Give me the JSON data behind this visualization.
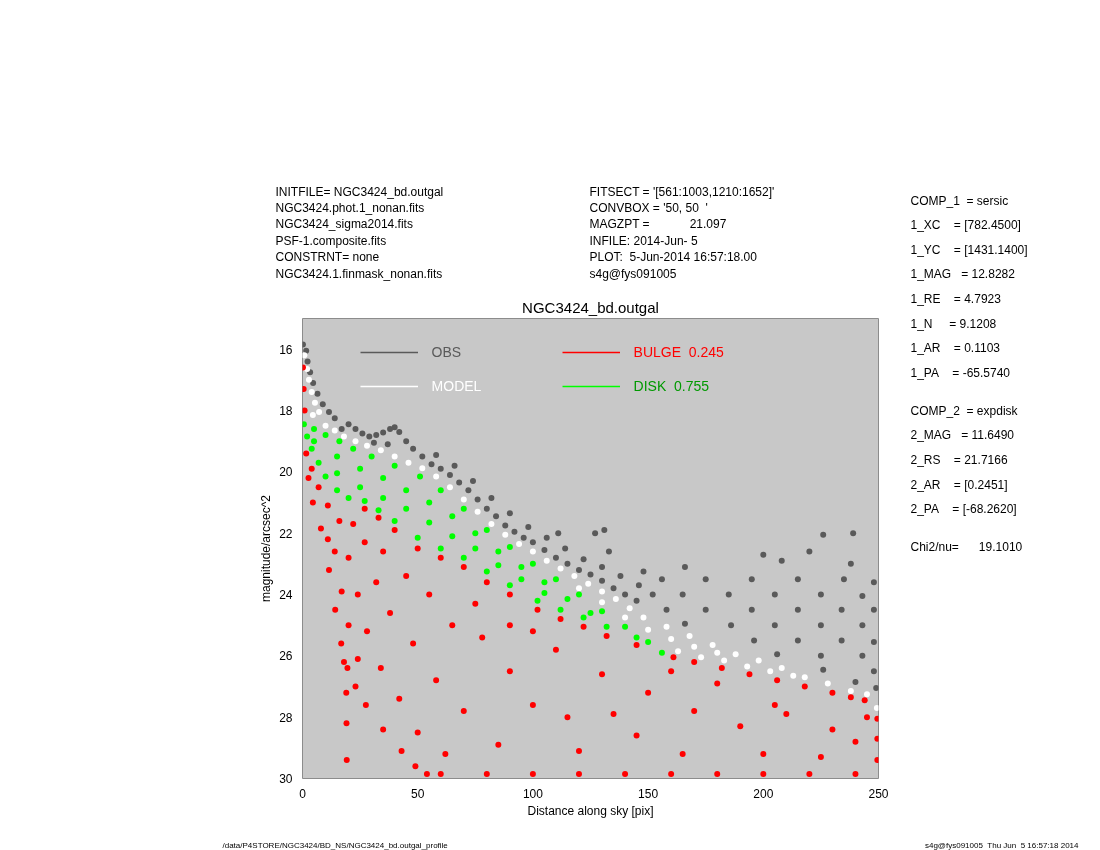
{
  "chart_data": {
    "type": "scatter",
    "title": "NGC3424_bd.outgal",
    "xlabel": "Distance along sky [pix]",
    "ylabel": "magnitude/arcsec^2",
    "xlim": [
      0,
      250
    ],
    "ylim": [
      30,
      15
    ],
    "xticks": [
      0,
      50,
      100,
      150,
      200,
      250
    ],
    "yticks": [
      16,
      18,
      20,
      22,
      24,
      26,
      28,
      30
    ],
    "marker": "circle",
    "legend": "top",
    "annotations": [
      "INITFILE= NGC3424_bd.outgal",
      "NGC3424.phot.1_nonan.fits",
      "NGC3424_sigma2014.fits",
      "PSF-1.composite.fits",
      "CONSTRNT= none",
      "NGC3424.1.finmask_nonan.fits",
      "FITSECT = '[561:1003,1210:1652]'",
      "CONVBOX = '50, 50  '",
      "MAGZPT =            21.097",
      "INFILE: 2014-Jun- 5",
      "PLOT:  5-Jun-2014 16:57:18.00",
      "s4g@fys091005",
      "COMP_1  = sersic",
      "1_XC    = [782.4500]",
      "1_YC    = [1431.1400]",
      "1_MAG   = 12.8282",
      "1_RE    = 4.7923",
      "1_N     = 9.1208",
      "1_AR    = 0.1103",
      "1_PA    = -65.5740",
      "COMP_2  = expdisk",
      "2_MAG   = 11.6490",
      "2_RS    = 21.7166",
      "2_AR    = [0.2451]",
      "2_PA    = [-68.2620]",
      "Chi2/nu=      19.1010",
      "/data/P4STORE/NGC3424/BD_NS/NGC3424_bd.outgal_profile",
      "s4g@fys091005  Thu Jun  5 16:57:18 2014"
    ],
    "series": [
      {
        "name": "OBS",
        "color": "#5a5a5a",
        "x": [
          0.2,
          1.6,
          2.2,
          3.3,
          4.6,
          6.5,
          8.8,
          11.5,
          14,
          17,
          20,
          23,
          26,
          29,
          32,
          35,
          38,
          40,
          42,
          45,
          48,
          31,
          37,
          52,
          56,
          60,
          64,
          68,
          72,
          76,
          80,
          84,
          88,
          92,
          96,
          100,
          105,
          110,
          115,
          120,
          125,
          130,
          135,
          140,
          145,
          58,
          66,
          74,
          82,
          90,
          98,
          106,
          114,
          122,
          130,
          138,
          146,
          111,
          127,
          131,
          133,
          148,
          156,
          175,
          195,
          215,
          235,
          248,
          152,
          165,
          185,
          205,
          225,
          243,
          158,
          175,
          195,
          215,
          234,
          248,
          166,
          186,
          205,
          225,
          243,
          196,
          215,
          234,
          248,
          206,
          225,
          243,
          226,
          248,
          240,
          249,
          166,
          200,
          208,
          220,
          226,
          238,
          239
        ],
        "values": [
          15.85,
          16.05,
          16.4,
          16.75,
          17.1,
          17.45,
          17.8,
          18.05,
          18.25,
          18.6,
          18.45,
          18.6,
          18.75,
          18.85,
          18.8,
          18.72,
          18.6,
          18.55,
          18.7,
          19.0,
          19.25,
          19.05,
          19.1,
          19.5,
          19.75,
          19.9,
          20.1,
          20.35,
          20.6,
          20.9,
          21.2,
          21.45,
          21.75,
          21.95,
          22.15,
          22.3,
          22.55,
          22.8,
          23.0,
          23.2,
          23.35,
          23.55,
          23.8,
          24.0,
          24.2,
          19.45,
          19.8,
          20.3,
          20.85,
          21.35,
          21.8,
          22.15,
          22.5,
          22.85,
          23.1,
          23.4,
          23.7,
          22.0,
          22.0,
          21.9,
          22.6,
          23.25,
          23.5,
          23.5,
          23.5,
          23.5,
          23.5,
          23.6,
          24.0,
          24.0,
          24.0,
          24.0,
          24.0,
          24.05,
          24.5,
          24.5,
          24.5,
          24.5,
          24.5,
          24.5,
          24.95,
          25.0,
          25.0,
          25.0,
          25.0,
          25.5,
          25.5,
          25.5,
          25.55,
          25.95,
          26.0,
          26.0,
          26.45,
          26.5,
          26.85,
          27.05,
          23.1,
          22.7,
          22.9,
          22.6,
          22.05,
          23.0,
          22.0
        ]
      },
      {
        "name": "MODEL",
        "color": "#ffffff",
        "x": [
          0.8,
          2.0,
          2.8,
          4,
          5.4,
          7.2,
          4.5,
          10,
          14,
          18,
          23,
          28,
          34,
          40,
          46,
          52,
          58,
          64,
          70,
          76,
          82,
          88,
          94,
          100,
          106,
          112,
          118,
          124,
          130,
          136,
          142,
          148,
          120,
          130,
          140,
          150,
          158,
          168,
          178,
          188,
          198,
          208,
          218,
          228,
          238,
          245,
          249.3,
          163,
          173,
          183,
          193,
          203,
          213,
          160,
          170,
          180
        ],
        "values": [
          16.2,
          16.65,
          17.0,
          17.4,
          17.75,
          18.05,
          18.15,
          18.5,
          18.65,
          18.85,
          19.0,
          19.15,
          19.3,
          19.5,
          19.7,
          19.88,
          20.15,
          20.5,
          20.9,
          21.3,
          21.7,
          22.05,
          22.35,
          22.6,
          22.9,
          23.15,
          23.4,
          23.65,
          23.9,
          24.15,
          24.45,
          24.75,
          23.8,
          24.25,
          24.75,
          25.15,
          25.05,
          25.35,
          25.65,
          25.95,
          26.15,
          26.4,
          26.7,
          26.9,
          27.15,
          27.25,
          27.7,
          25.85,
          26.05,
          26.15,
          26.35,
          26.5,
          26.65,
          25.45,
          25.7,
          25.9
        ]
      },
      {
        "name": "BULGE  0.245",
        "color": "#ff0000",
        "x": [
          0.2,
          0.5,
          0.9,
          1.6,
          2.6,
          4.5,
          8,
          11.5,
          14.2,
          16.8,
          18,
          19.5,
          23,
          27.5,
          35,
          43,
          49,
          54,
          19,
          19.1,
          19.2,
          27,
          33,
          40,
          50,
          60,
          70,
          80,
          90,
          102,
          112,
          122,
          132,
          145,
          161,
          170,
          182,
          194,
          206,
          218,
          230,
          238,
          244,
          249.5,
          249.5,
          249.5,
          60,
          80,
          100,
          120,
          140,
          160,
          180,
          200,
          220,
          240,
          4,
          7,
          11,
          16,
          22,
          11,
          14,
          20,
          27,
          35,
          17,
          24,
          32,
          45,
          20,
          28,
          38,
          55,
          24,
          34,
          48,
          65,
          42,
          58,
          78,
          50,
          70,
          90,
          110,
          62,
          85,
          100,
          130,
          150,
          170,
          190,
          210,
          230,
          120,
          145,
          165,
          200,
          225,
          240,
          245,
          115,
          135,
          180,
          205,
          160,
          100,
          75,
          90
        ],
        "values": [
          16.6,
          17.3,
          18.0,
          19.4,
          20.2,
          21.0,
          21.85,
          23.2,
          24.5,
          25.6,
          26.2,
          26.4,
          27.0,
          27.6,
          28.4,
          29.1,
          29.6,
          29.85,
          27.2,
          28.2,
          29.4,
          21.2,
          21.5,
          21.9,
          22.5,
          22.8,
          23.1,
          23.6,
          24.0,
          24.5,
          24.8,
          25.05,
          25.35,
          25.65,
          26.05,
          26.2,
          26.4,
          26.6,
          26.8,
          27.0,
          27.2,
          27.35,
          27.45,
          28.05,
          28.7,
          29.4,
          29.85,
          29.85,
          29.85,
          29.85,
          29.85,
          29.85,
          29.85,
          29.85,
          29.85,
          29.85,
          19.9,
          20.5,
          21.1,
          21.6,
          21.7,
          22.2,
          22.6,
          22.8,
          22.3,
          22.6,
          23.9,
          24.0,
          23.6,
          23.4,
          25.0,
          25.2,
          24.6,
          24.0,
          26.1,
          26.4,
          25.6,
          25.0,
          27.4,
          26.8,
          25.4,
          28.5,
          27.8,
          26.5,
          25.8,
          29.2,
          28.9,
          27.6,
          26.6,
          27.2,
          27.8,
          28.3,
          27.9,
          28.4,
          29.1,
          28.6,
          29.2,
          29.2,
          29.3,
          28.8,
          28.0,
          28.0,
          27.9,
          26.9,
          27.6,
          26.5,
          25.2,
          24.3,
          25.0
        ]
      },
      {
        "name": "DISK  0.755",
        "color": "#00ff00",
        "x": [
          0.6,
          5,
          10,
          16,
          22,
          30,
          40,
          51,
          60,
          70,
          80,
          90,
          100,
          110,
          120,
          130,
          140,
          150,
          156,
          2,
          4,
          7,
          10,
          15,
          20,
          27,
          33,
          40,
          50,
          60,
          70,
          80,
          90,
          102,
          112,
          122,
          132,
          145,
          5,
          15,
          15,
          25,
          25,
          35,
          35,
          45,
          45,
          55,
          55,
          65,
          65,
          75,
          75,
          85,
          85,
          95,
          95,
          105,
          105,
          115,
          125
        ],
        "values": [
          18.45,
          18.6,
          18.8,
          19.0,
          19.25,
          19.5,
          19.8,
          20.15,
          20.6,
          21.2,
          21.9,
          22.45,
          23.0,
          23.5,
          24.0,
          24.55,
          25.05,
          25.55,
          25.9,
          18.85,
          19.25,
          19.7,
          20.15,
          20.6,
          20.85,
          20.95,
          21.25,
          21.6,
          22.15,
          22.5,
          22.8,
          23.25,
          23.7,
          24.2,
          24.5,
          24.75,
          25.05,
          25.4,
          19.0,
          19.5,
          20.05,
          19.9,
          20.5,
          20.2,
          20.85,
          20.6,
          21.2,
          21.0,
          21.65,
          21.45,
          22.1,
          22.0,
          22.5,
          22.6,
          23.05,
          23.1,
          23.5,
          23.6,
          23.95,
          24.15,
          24.6
        ]
      }
    ]
  }
}
